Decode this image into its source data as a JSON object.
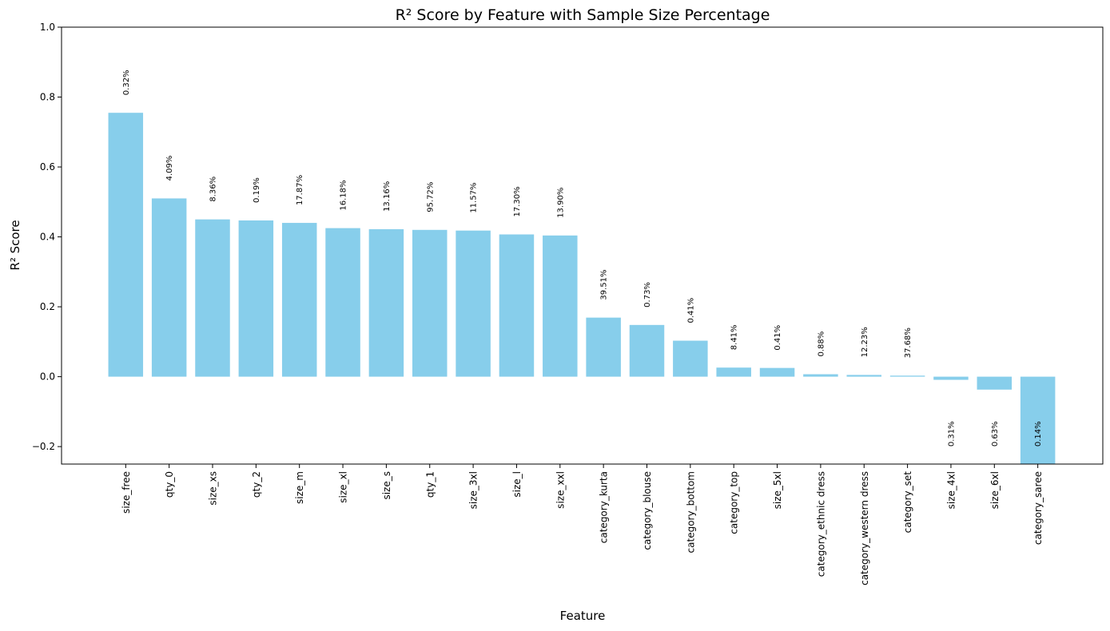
{
  "chart_data": {
    "type": "bar",
    "title": "R² Score by Feature with Sample Size Percentage",
    "xlabel": "Feature",
    "ylabel": "R² Score",
    "ylim": [
      -0.25,
      1.0
    ],
    "yticks": [
      -0.2,
      0.0,
      0.2,
      0.4,
      0.6,
      0.8,
      1.0
    ],
    "ytick_labels": [
      "−0.2",
      "0.0",
      "0.2",
      "0.4",
      "0.6",
      "0.8",
      "1.0"
    ],
    "grid": false,
    "bar_color": "#87CEEB",
    "categories": [
      "size_free",
      "qty_0",
      "size_xs",
      "qty_2",
      "size_m",
      "size_xl",
      "size_s",
      "qty_1",
      "size_3xl",
      "size_l",
      "size_xxl",
      "category_kurta",
      "category_blouse",
      "category_bottom",
      "category_top",
      "size_5xl",
      "category_ethnic dress",
      "category_western dress",
      "category_set",
      "size_4xl",
      "size_6xl",
      "category_saree"
    ],
    "values": [
      0.755,
      0.51,
      0.45,
      0.447,
      0.44,
      0.425,
      0.422,
      0.42,
      0.418,
      0.407,
      0.404,
      0.169,
      0.148,
      0.103,
      0.026,
      0.025,
      0.007,
      0.005,
      0.003,
      -0.009,
      -0.037,
      -0.25
    ],
    "labels": [
      "0.32%",
      "4.09%",
      "8.36%",
      "0.19%",
      "17.87%",
      "16.18%",
      "13.16%",
      "95.72%",
      "11.57%",
      "17.30%",
      "13.90%",
      "39.51%",
      "0.73%",
      "0.41%",
      "8.41%",
      "0.41%",
      "0.88%",
      "12.23%",
      "37.68%",
      "0.31%",
      "0.63%",
      "0.14%"
    ]
  }
}
